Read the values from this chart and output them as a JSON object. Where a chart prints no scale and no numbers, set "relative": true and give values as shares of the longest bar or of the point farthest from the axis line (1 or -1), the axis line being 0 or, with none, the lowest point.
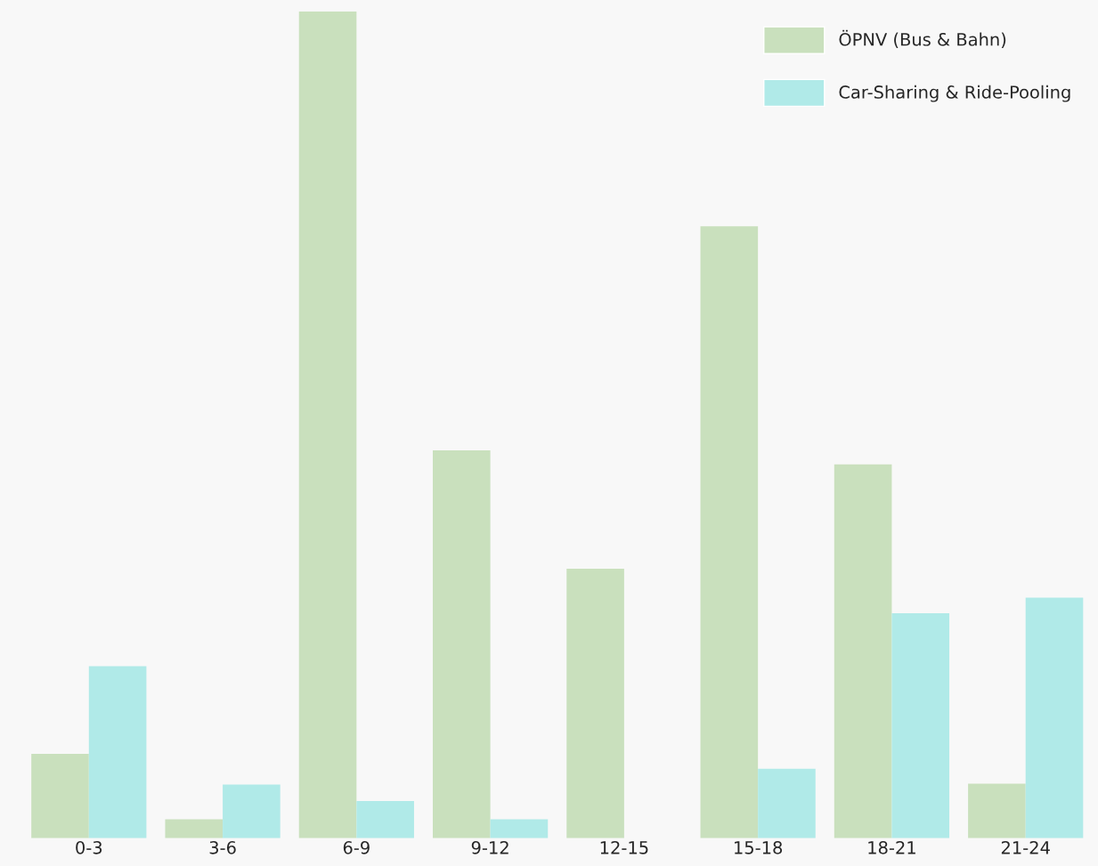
{
  "chart_data": {
    "type": "bar",
    "relative": true,
    "categories": [
      "0-3",
      "3-6",
      "6-9",
      "9-12",
      "12-15",
      "15-18",
      "18-21",
      "21-24"
    ],
    "series": [
      {
        "name": "ÖPNV (Bus & Bahn)",
        "color": "#c9e0bd",
        "values": [
          0.102,
          0.023,
          1,
          0.469,
          0.326,
          0.74,
          0.452,
          0.066
        ]
      },
      {
        "name": "Car-Sharing & Ride-Pooling",
        "color": "#b0eae8",
        "values": [
          0.208,
          0.065,
          0.045,
          0.023,
          0,
          0.084,
          0.272,
          0.291
        ]
      }
    ],
    "legend": "top right",
    "grid": false
  }
}
